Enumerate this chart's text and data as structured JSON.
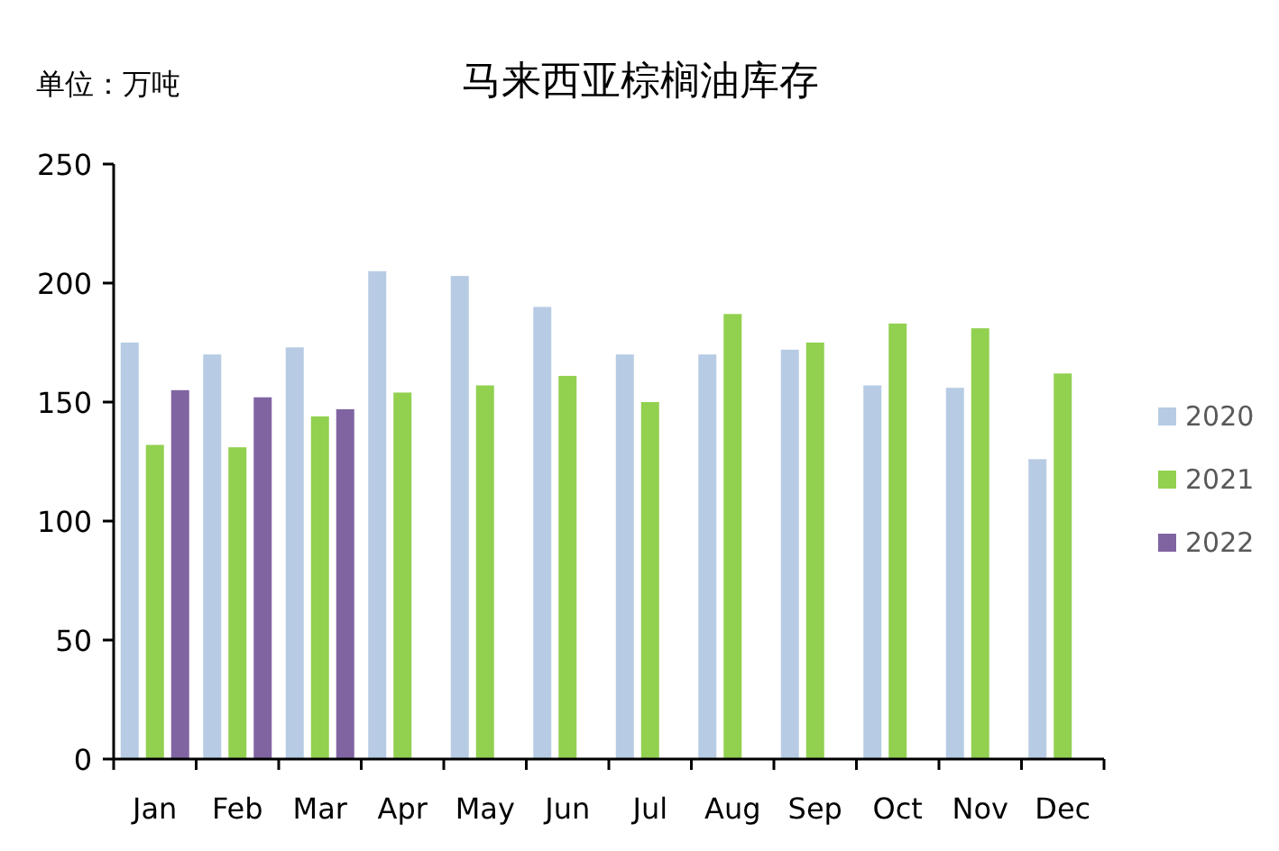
{
  "chart_data": {
    "type": "bar",
    "title": "马来西亚棕榈油库存",
    "annotations": [
      "单位：万吨"
    ],
    "categories": [
      "Jan",
      "Feb",
      "Mar",
      "Apr",
      "May",
      "Jun",
      "Jul",
      "Aug",
      "Sep",
      "Oct",
      "Nov",
      "Dec"
    ],
    "series": [
      {
        "name": "2020",
        "color": "#b7cce4",
        "values": [
          175,
          170,
          173,
          205,
          203,
          190,
          170,
          170,
          172,
          157,
          156,
          126
        ]
      },
      {
        "name": "2021",
        "color": "#92d050",
        "values": [
          132,
          131,
          144,
          154,
          157,
          161,
          150,
          187,
          175,
          183,
          181,
          162
        ]
      },
      {
        "name": "2022",
        "color": "#8064a2",
        "values": [
          155,
          152,
          147,
          null,
          null,
          null,
          null,
          null,
          null,
          null,
          null,
          null
        ]
      }
    ],
    "ylim": [
      0,
      250
    ],
    "yticks": [
      0,
      50,
      100,
      150,
      200,
      250
    ],
    "grid": false,
    "legend": "right"
  }
}
